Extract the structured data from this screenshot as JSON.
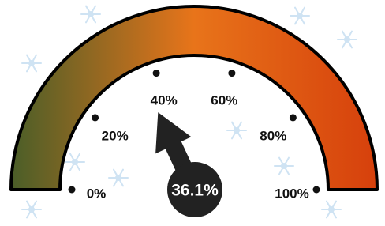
{
  "chart_data": {
    "type": "gauge",
    "value": 36.1,
    "value_label": "36.1%",
    "ylim": [
      0,
      100
    ],
    "yticks": [
      {
        "value": 0,
        "label": "0%"
      },
      {
        "value": 20,
        "label": "20%"
      },
      {
        "value": 40,
        "label": "40%"
      },
      {
        "value": 60,
        "label": "60%"
      },
      {
        "value": 80,
        "label": "80%"
      },
      {
        "value": 100,
        "label": "100%"
      }
    ],
    "colors": [
      "#4a5e28",
      "#e8741a",
      "#d6400c"
    ],
    "needle_color": "#222222"
  }
}
